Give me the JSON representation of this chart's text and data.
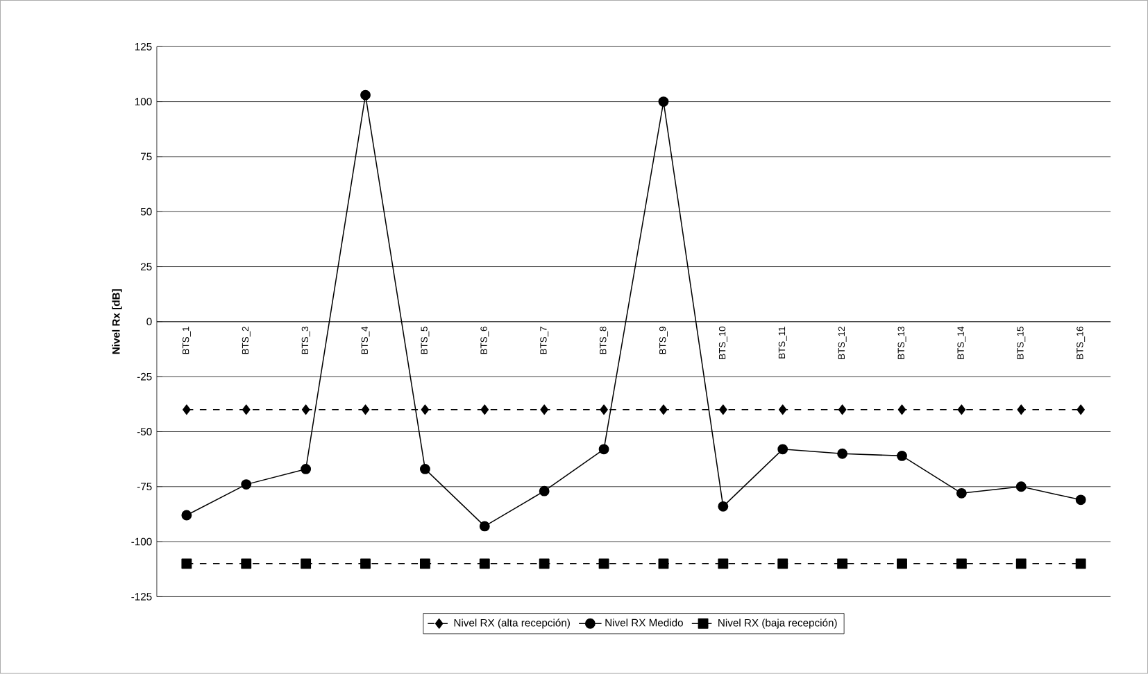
{
  "chart_data": {
    "type": "line",
    "ylabel": "Nivel Rx [dB]",
    "categories": [
      "BTS_1",
      "BTS_2",
      "BTS_3",
      "BTS_4",
      "BTS_5",
      "BTS_6",
      "BTS_7",
      "BTS_8",
      "BTS_9",
      "BTS_10",
      "BTS_11",
      "BTS_12",
      "BTS_13",
      "BTS_14",
      "BTS_15",
      "BTS_16"
    ],
    "series": [
      {
        "name": "Nivel RX (alta recepción)",
        "color": "#000000",
        "marker": "diamond",
        "line_style": "dashed",
        "values": [
          -40,
          -40,
          -40,
          -40,
          -40,
          -40,
          -40,
          -40,
          -40,
          -40,
          -40,
          -40,
          -40,
          -40,
          -40,
          -40
        ]
      },
      {
        "name": "Nivel RX Medido",
        "color": "#000000",
        "marker": "circle",
        "line_style": "solid",
        "values": [
          -88,
          -74,
          -67,
          103,
          -67,
          -93,
          -77,
          -58,
          100,
          -84,
          -58,
          -60,
          -61,
          -78,
          -75,
          -81
        ]
      },
      {
        "name": "Nivel RX (baja recepción)",
        "color": "#000000",
        "marker": "square",
        "line_style": "dashed",
        "values": [
          -110,
          -110,
          -110,
          -110,
          -110,
          -110,
          -110,
          -110,
          -110,
          -110,
          -110,
          -110,
          -110,
          -110,
          -110,
          -110
        ]
      }
    ],
    "ylim": [
      -125,
      125
    ],
    "yticks": [
      -125,
      -100,
      -75,
      -50,
      -25,
      0,
      25,
      50,
      75,
      100,
      125
    ],
    "grid": "y",
    "legend": "bottom"
  }
}
